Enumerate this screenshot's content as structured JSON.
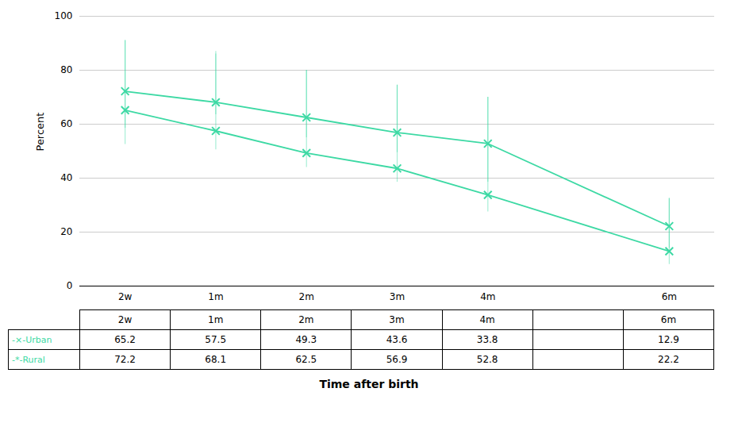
{
  "chart_data": {
    "type": "line",
    "xlabel": "Time after birth",
    "ylabel": "Percent",
    "x": [
      0,
      1,
      2,
      3,
      4,
      6
    ],
    "series": [
      {
        "name": "-×-Urban",
        "color": "#3DD9A4",
        "marker": "x",
        "line_style": "solid",
        "values": [
          65.2,
          57.5,
          49.3,
          43.6,
          33.8,
          12.9
        ],
        "err_lo": [
          12.7,
          7.0,
          5.3,
          5.1,
          6.3,
          4.9
        ],
        "err_up": [
          25.8,
          28.5,
          30.7,
          30.9,
          36.2,
          19.6
        ]
      },
      {
        "name": "-*-Rural",
        "color": "#3DD9A4",
        "marker": "x",
        "line_style": "solid",
        "values": [
          72.2,
          68.1,
          62.5,
          56.9,
          52.8,
          22.2
        ],
        "err_lo": [
          13.7,
          4.6,
          7.5,
          7.4,
          14.3,
          8.2
        ],
        "err_up": [
          18.8,
          18.9,
          17.5,
          17.6,
          17.2,
          10.3
        ]
      }
    ],
    "xlim": [
      -0.5,
      6.5
    ],
    "xticks": [
      {
        "value": 0,
        "label": "2w"
      },
      {
        "value": 1,
        "label": "1m"
      },
      {
        "value": 2,
        "label": "2m"
      },
      {
        "value": 3,
        "label": "3m"
      },
      {
        "value": 4,
        "label": "4m"
      },
      {
        "value": 6,
        "label": "6m"
      }
    ],
    "ylim": [
      0,
      100
    ],
    "yticks": [
      0,
      20,
      40,
      60,
      80,
      100
    ],
    "grid": "y",
    "table": {
      "columns": [
        "2w",
        "1m",
        "2m",
        "3m",
        "4m",
        null,
        "6m"
      ],
      "rows": [
        {
          "name": "-×-Urban",
          "color": "#3DD9A4",
          "values": [
            65.2,
            57.5,
            49.3,
            43.6,
            33.8,
            null,
            12.9
          ]
        },
        {
          "name": "-*-Rural",
          "color": "#3DD9A4",
          "values": [
            72.2,
            68.1,
            62.5,
            56.9,
            52.8,
            null,
            22.2
          ]
        }
      ]
    }
  }
}
